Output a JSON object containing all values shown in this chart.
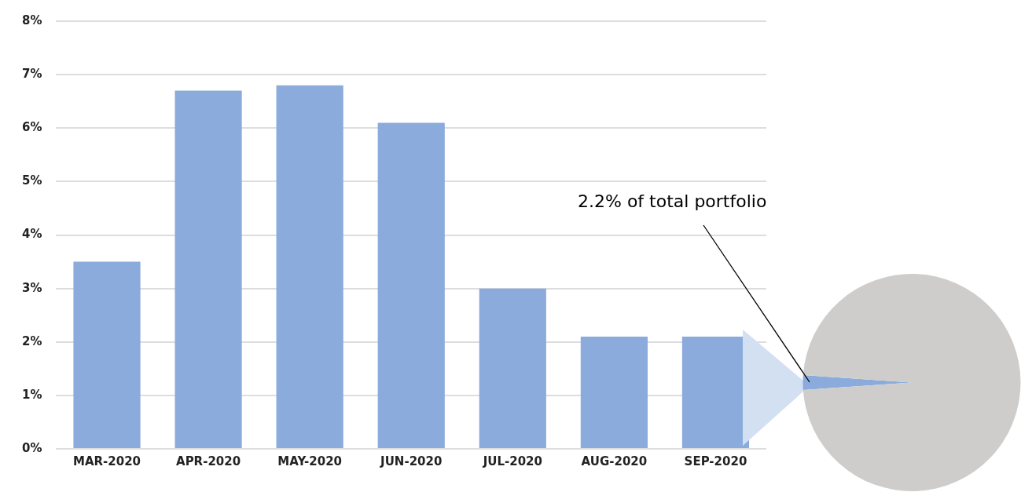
{
  "chart_data": [
    {
      "type": "bar",
      "categories": [
        "MAR-2020",
        "APR-2020",
        "MAY-2020",
        "JUN-2020",
        "JUL-2020",
        "AUG-2020",
        "SEP-2020"
      ],
      "values": [
        3.5,
        6.7,
        6.8,
        6.1,
        3.0,
        2.1,
        2.1
      ],
      "color": "#8aabdc",
      "ylim": [
        0,
        8
      ],
      "yticks": [
        {
          "value": 0,
          "label": "0%"
        },
        {
          "value": 1,
          "label": "1%"
        },
        {
          "value": 2,
          "label": "2%"
        },
        {
          "value": 3,
          "label": "3%"
        },
        {
          "value": 4,
          "label": "4%"
        },
        {
          "value": 5,
          "label": "5%"
        },
        {
          "value": 6,
          "label": "6%"
        },
        {
          "value": 7,
          "label": "7%"
        },
        {
          "value": 8,
          "label": "8%"
        }
      ],
      "grid": "y",
      "legend": false
    },
    {
      "type": "pie",
      "categories": [
        null,
        null
      ],
      "values": [
        2.2,
        97.8
      ],
      "colors": [
        "#8aabdc",
        "#cfcdcb"
      ],
      "annotations": [
        "2.2% of total portfolio"
      ],
      "legend": false
    }
  ]
}
